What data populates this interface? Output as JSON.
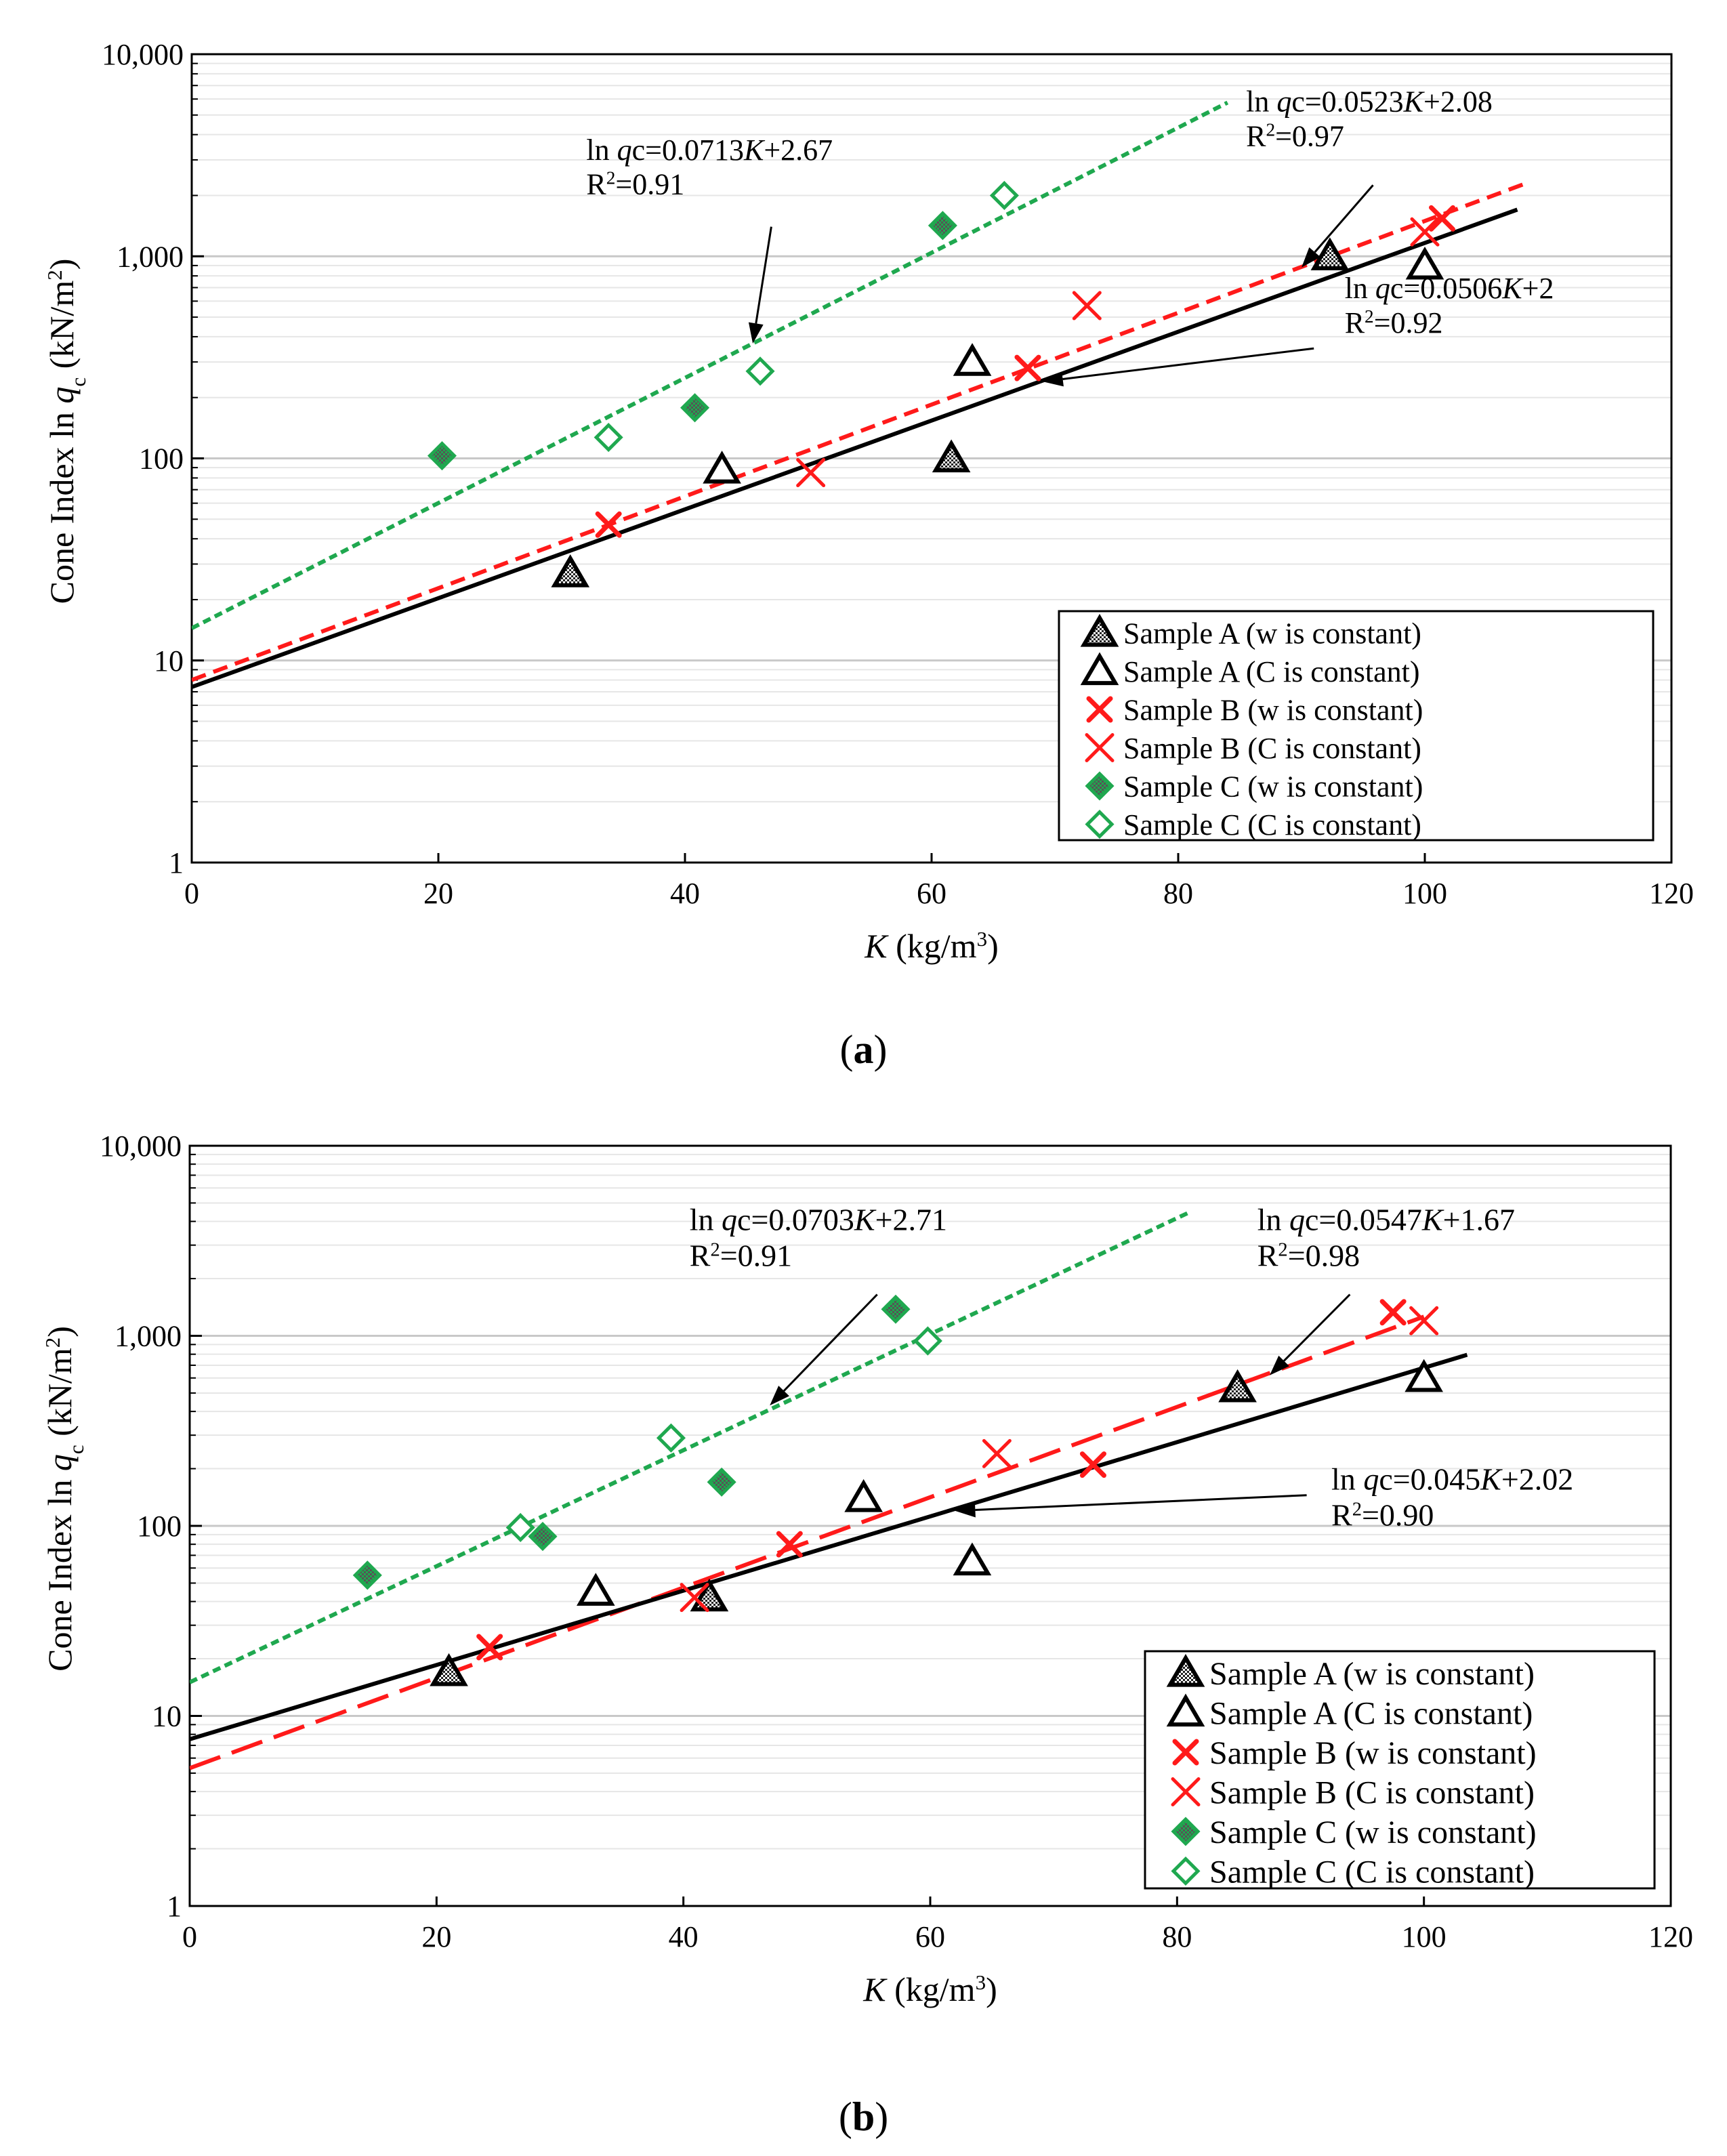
{
  "colors": {
    "sample_a": "#000000",
    "sample_b": "#ff1a1a",
    "sample_c": "#1fa84f",
    "grid_major": "#c8c8c8",
    "grid_minor": "#e6e6e6"
  },
  "chart_data": [
    {
      "type": "scatter",
      "panel_label": "a",
      "xlabel_italic": "K",
      "xlabel_rest": " (kg/m",
      "xlabel_sup": "3",
      "xlabel_end": ")",
      "ylabel_main": "Cone Index ln ",
      "ylabel_italic": "q",
      "ylabel_sub": "c",
      "ylabel_unit": "  (kN/m",
      "ylabel_sup": "2",
      "ylabel_end": ")",
      "xlim": [
        0,
        120
      ],
      "ylim": [
        1,
        10000
      ],
      "yscale": "log",
      "grid": true,
      "xticks": [
        0,
        20,
        40,
        60,
        80,
        100,
        120
      ],
      "xtick_labels": [
        "0",
        "20",
        "40",
        "60",
        "80",
        "100",
        "120"
      ],
      "yticks": [
        1,
        10,
        100,
        1000,
        10000
      ],
      "ytick_labels": [
        "1",
        "10",
        "100",
        "1,000",
        "10,000"
      ],
      "legend_position": "bottom-right",
      "series": [
        {
          "name": "Sample  A   (w is constant)",
          "key": "A_w",
          "color": "#000000",
          "marker": "triangle-hatched",
          "points": [
            [
              30.7,
              27
            ],
            [
              61.6,
              100
            ],
            [
              92.3,
              1000
            ]
          ]
        },
        {
          "name": "Sample  A   (C is constant)",
          "key": "A_C",
          "color": "#000000",
          "marker": "triangle-open",
          "points": [
            [
              43,
              88
            ],
            [
              63.3,
              300
            ],
            [
              100,
              900
            ]
          ]
        },
        {
          "name": "Sample  B   (w is constant)",
          "key": "B_w",
          "color": "#ff1a1a",
          "marker": "x-bold",
          "points": [
            [
              33.8,
              47
            ],
            [
              67.8,
              280
            ],
            [
              101.4,
              1540
            ]
          ]
        },
        {
          "name": "Sample  B   (C is constant)",
          "key": "B_C",
          "color": "#ff1a1a",
          "marker": "x",
          "points": [
            [
              50.2,
              85
            ],
            [
              72.6,
              570
            ],
            [
              100,
              1320
            ]
          ]
        },
        {
          "name": "Sample  C   (w is constant)",
          "key": "C_w",
          "color": "#1fa84f",
          "marker": "diamond-hatched",
          "points": [
            [
              20.3,
              103
            ],
            [
              40.8,
              178
            ],
            [
              60.9,
              1420
            ]
          ]
        },
        {
          "name": "Sample  C   (C is constant)",
          "key": "C_C",
          "color": "#1fa84f",
          "marker": "diamond-open",
          "points": [
            [
              33.8,
              127
            ],
            [
              46.1,
              270
            ],
            [
              65.9,
              2000
            ]
          ]
        }
      ],
      "trendlines": [
        {
          "name": "Sample C fit",
          "color": "#1fa84f",
          "style": "dotted",
          "slope": 0.0713,
          "intercept": 2.67,
          "x_range": [
            0,
            84
          ]
        },
        {
          "name": "Sample B fit",
          "color": "#ff1a1a",
          "style": "dashed",
          "slope": 0.0523,
          "intercept": 2.08,
          "x_range": [
            0,
            108
          ]
        },
        {
          "name": "Sample A fit",
          "color": "#000000",
          "style": "solid",
          "slope": 0.0506,
          "intercept": 2.0,
          "x_range": [
            0,
            107.5
          ]
        }
      ],
      "annotations": [
        {
          "eq_pre": "ln ",
          "eq_italic": "q",
          "eq_mid": "c=0.0713",
          "eq_italic2": "K",
          "eq_post": "+2.67",
          "r2_pre": "R",
          "r2_sup": "2",
          "r2_post": "=0.91",
          "text_at": [
            32,
            3000
          ],
          "arrow_from": [
            47,
            1400
          ],
          "arrow_to": [
            45.5,
            370
          ]
        },
        {
          "eq_pre": "ln ",
          "eq_italic": "q",
          "eq_mid": "c=0.0523",
          "eq_italic2": "K",
          "eq_post": "+2.08",
          "r2_pre": "R",
          "r2_sup": "2",
          "r2_post": "=0.97",
          "text_at": [
            85.5,
            5200
          ],
          "arrow_from": [
            95.8,
            2250
          ],
          "arrow_to": [
            90,
            880
          ]
        },
        {
          "eq_pre": "ln ",
          "eq_italic": "q",
          "eq_mid": "c=0.0506",
          "eq_italic2": "K",
          "eq_post": "+2",
          "r2_pre": "R",
          "r2_sup": "2",
          "r2_post": "=0.92",
          "text_at": [
            93.5,
            620
          ],
          "arrow_from": [
            91,
            350
          ],
          "arrow_to": [
            69,
            240
          ]
        }
      ]
    },
    {
      "type": "scatter",
      "panel_label": "b",
      "xlabel_italic": "K",
      "xlabel_rest": " (kg/m",
      "xlabel_sup": "3",
      "xlabel_end": ")",
      "ylabel_main": "Cone Index  ln ",
      "ylabel_italic": "q",
      "ylabel_sub": "c",
      "ylabel_unit": "  (kN/m",
      "ylabel_sup": "2",
      "ylabel_end": ")",
      "xlim": [
        0,
        120
      ],
      "ylim": [
        1,
        10000
      ],
      "yscale": "log",
      "grid": true,
      "xticks": [
        0,
        20,
        40,
        60,
        80,
        100,
        120
      ],
      "xtick_labels": [
        "0",
        "20",
        "40",
        "60",
        "80",
        "100",
        "120"
      ],
      "yticks": [
        1,
        10,
        100,
        1000,
        10000
      ],
      "ytick_labels": [
        "1",
        "10",
        "100",
        "1,000",
        "10,000"
      ],
      "legend_position": "bottom-right",
      "series": [
        {
          "name": "Sample  A   (w is constant)",
          "key": "A_w",
          "color": "#000000",
          "marker": "triangle-hatched",
          "points": [
            [
              21,
              17
            ],
            [
              42.1,
              42
            ],
            [
              84.9,
              530
            ]
          ]
        },
        {
          "name": "Sample  A   (C is constant)",
          "key": "A_C",
          "color": "#000000",
          "marker": "triangle-open",
          "points": [
            [
              32.9,
              45
            ],
            [
              54.6,
              140
            ],
            [
              63.4,
              65
            ],
            [
              100,
              600
            ]
          ]
        },
        {
          "name": "Sample  B   (w is constant)",
          "key": "B_w",
          "color": "#ff1a1a",
          "marker": "x-bold",
          "points": [
            [
              24.3,
              23
            ],
            [
              48.6,
              80
            ],
            [
              73.2,
              210
            ],
            [
              97.5,
              1330
            ]
          ]
        },
        {
          "name": "Sample  B   (C is constant)",
          "key": "B_C",
          "color": "#ff1a1a",
          "marker": "x",
          "points": [
            [
              40.9,
              42
            ],
            [
              65.4,
              240
            ],
            [
              100,
              1200
            ]
          ]
        },
        {
          "name": "Sample  C   (w is constant)",
          "key": "C_w",
          "color": "#1fa84f",
          "marker": "diamond-hatched",
          "points": [
            [
              14.4,
              55
            ],
            [
              28.6,
              88
            ],
            [
              43.1,
              170
            ],
            [
              57.2,
              1380
            ]
          ]
        },
        {
          "name": "Sample  C   (C is constant)",
          "key": "C_C",
          "color": "#1fa84f",
          "marker": "diamond-open",
          "points": [
            [
              26.8,
              98
            ],
            [
              39,
              290
            ],
            [
              59.8,
              940
            ]
          ]
        }
      ],
      "trendlines": [
        {
          "name": "Sample C fit",
          "color": "#1fa84f",
          "style": "dotted",
          "slope": 0.0703,
          "intercept": 2.71,
          "x_range": [
            0,
            81
          ]
        },
        {
          "name": "Sample B fit",
          "color": "#ff1a1a",
          "style": "longdash",
          "slope": 0.0547,
          "intercept": 1.67,
          "x_range": [
            0,
            100
          ]
        },
        {
          "name": "Sample A fit",
          "color": "#000000",
          "style": "solid",
          "slope": 0.045,
          "intercept": 2.02,
          "x_range": [
            0,
            103.5
          ]
        }
      ],
      "annotations": [
        {
          "eq_pre": "ln ",
          "eq_italic": "q",
          "eq_mid": "c=0.0703",
          "eq_italic2": "K",
          "eq_post": "+2.71",
          "r2_pre": "R",
          "r2_sup": "2",
          "r2_post": "=0.91",
          "text_at": [
            40.5,
            3600
          ],
          "arrow_from": [
            55.7,
            1650
          ],
          "arrow_to": [
            47,
            430
          ]
        },
        {
          "eq_pre": "ln ",
          "eq_italic": "q",
          "eq_mid": "c=0.0547",
          "eq_italic2": "K",
          "eq_post": "+1.67",
          "r2_pre": "R",
          "r2_sup": "2",
          "r2_post": "=0.98",
          "text_at": [
            86.5,
            3600
          ],
          "arrow_from": [
            94,
            1650
          ],
          "arrow_to": [
            87.5,
            620
          ]
        },
        {
          "eq_pre": "ln ",
          "eq_italic": "q",
          "eq_mid": "c=0.045",
          "eq_italic2": "K",
          "eq_post": "+2.02",
          "r2_pre": "R",
          "r2_sup": "2",
          "r2_post": "=0.90",
          "text_at": [
            92.5,
            155
          ],
          "arrow_from": [
            90.5,
            145
          ],
          "arrow_to": [
            62,
            120
          ]
        }
      ]
    }
  ]
}
